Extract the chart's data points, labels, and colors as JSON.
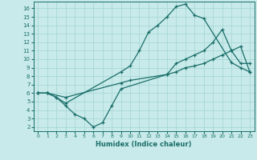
{
  "xlabel": "Humidex (Indice chaleur)",
  "bg_color": "#c8eaea",
  "grid_color": "#a8d8d4",
  "line_color": "#1a6e6a",
  "xlim": [
    -0.5,
    23.5
  ],
  "ylim": [
    1.5,
    16.8
  ],
  "xticks": [
    0,
    1,
    2,
    3,
    4,
    5,
    6,
    7,
    8,
    9,
    10,
    11,
    12,
    13,
    14,
    15,
    16,
    17,
    18,
    19,
    20,
    21,
    22,
    23
  ],
  "yticks": [
    2,
    3,
    4,
    5,
    6,
    7,
    8,
    9,
    10,
    11,
    12,
    13,
    14,
    15,
    16
  ],
  "line1_x": [
    0,
    1,
    2,
    3,
    9,
    10,
    11,
    12,
    13,
    14,
    15,
    16,
    17,
    18,
    21,
    22,
    23
  ],
  "line1_y": [
    6,
    6,
    5.5,
    4.8,
    8.5,
    9.2,
    11.0,
    13.2,
    14.0,
    15.0,
    16.2,
    16.5,
    15.2,
    14.8,
    9.6,
    9.0,
    8.5
  ],
  "line2_x": [
    0,
    1,
    3,
    9,
    10,
    14,
    15,
    16,
    17,
    18,
    19,
    20,
    21,
    22,
    23
  ],
  "line2_y": [
    6,
    6,
    5.5,
    7.2,
    7.5,
    8.2,
    8.5,
    9.0,
    9.2,
    9.5,
    10.0,
    10.5,
    11.0,
    11.5,
    8.5
  ],
  "line3_x": [
    0,
    1,
    2,
    3,
    4,
    5,
    6,
    7,
    8,
    9,
    14,
    15,
    16,
    17,
    18,
    19,
    20,
    21,
    22,
    23
  ],
  "line3_y": [
    6,
    6,
    5.5,
    4.5,
    3.5,
    3.0,
    2.0,
    2.5,
    4.5,
    6.5,
    8.2,
    9.5,
    10.0,
    10.5,
    11.0,
    12.0,
    13.5,
    11.0,
    9.5,
    9.5
  ]
}
